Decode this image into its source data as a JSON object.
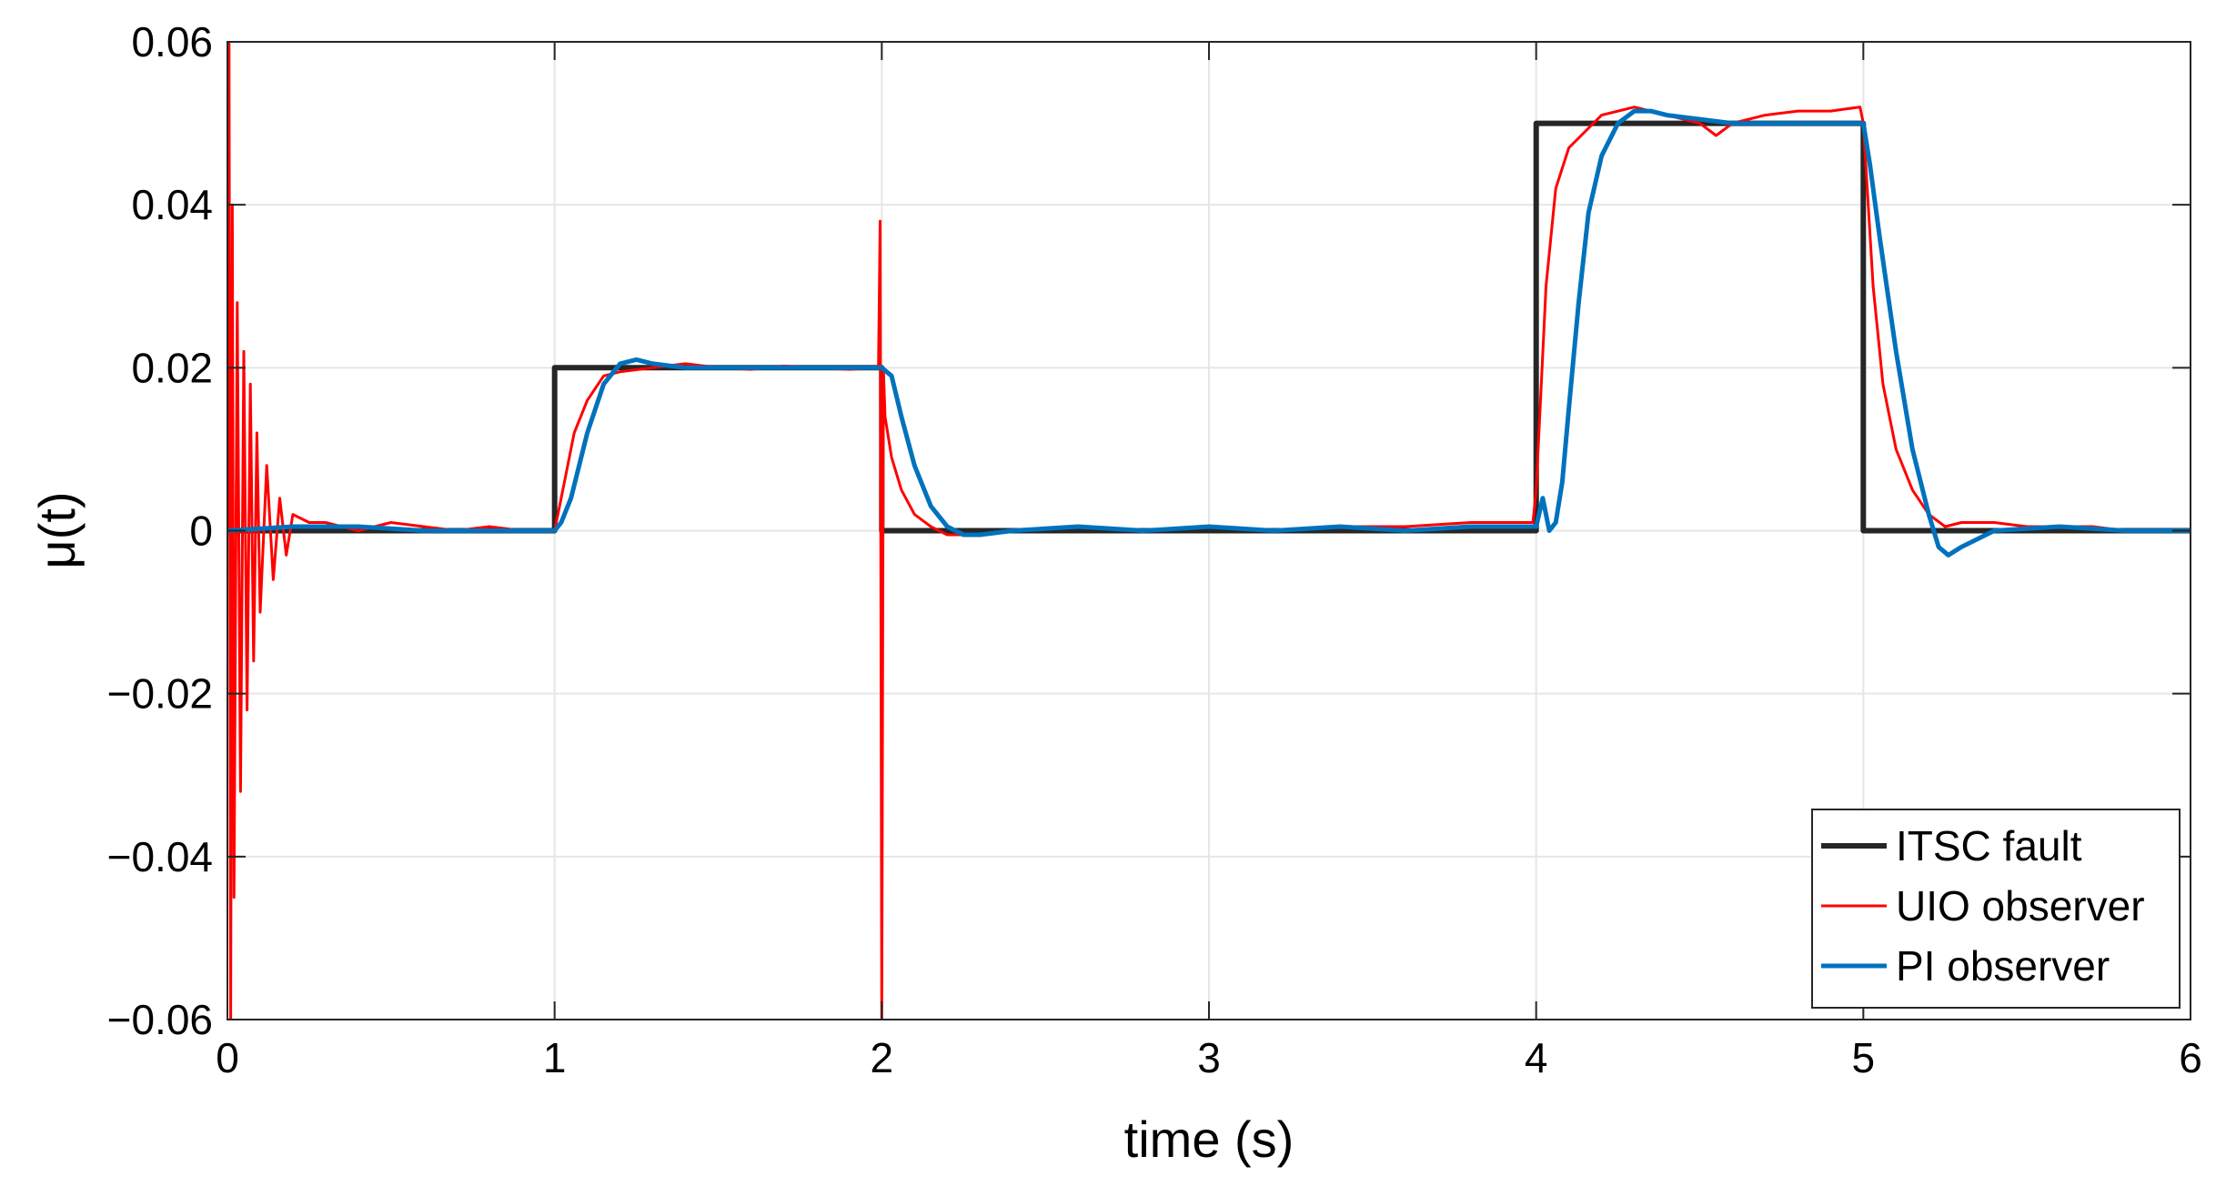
{
  "chart_data": {
    "type": "line",
    "title": "",
    "xlabel": "time (s)",
    "ylabel": "μ(t)",
    "xlim": [
      0,
      6
    ],
    "ylim": [
      -0.06,
      0.06
    ],
    "xticks": [
      0,
      1,
      2,
      3,
      4,
      5,
      6
    ],
    "xtick_labels": [
      "0",
      "1",
      "2",
      "3",
      "4",
      "5",
      "6"
    ],
    "yticks": [
      -0.06,
      -0.04,
      -0.02,
      0,
      0.02,
      0.04,
      0.06
    ],
    "ytick_labels": [
      "−0.06",
      "−0.04",
      "−0.02",
      "0",
      "0.02",
      "0.04",
      "0.06"
    ],
    "grid": true,
    "legend_position": "bottom-right",
    "series": [
      {
        "name": "ITSC fault",
        "color": "#262626",
        "x": [
          0,
          1,
          1,
          2,
          2,
          4,
          4,
          5,
          5,
          6
        ],
        "y": [
          0,
          0,
          0.02,
          0.02,
          0,
          0,
          0.05,
          0.05,
          0,
          0
        ]
      },
      {
        "name": "UIO observer",
        "color": "#ff0000",
        "x": [
          0,
          0.005,
          0.01,
          0.015,
          0.02,
          0.03,
          0.04,
          0.05,
          0.06,
          0.07,
          0.08,
          0.09,
          0.1,
          0.12,
          0.14,
          0.16,
          0.18,
          0.2,
          0.25,
          0.3,
          0.4,
          0.5,
          0.6,
          0.7,
          0.8,
          0.9,
          1.0,
          1.03,
          1.06,
          1.1,
          1.15,
          1.2,
          1.3,
          1.4,
          1.5,
          1.6,
          1.7,
          1.8,
          1.9,
          1.99,
          1.995,
          2.0,
          2.005,
          2.01,
          2.03,
          2.06,
          2.1,
          2.15,
          2.2,
          2.3,
          2.4,
          2.6,
          2.8,
          3.0,
          3.2,
          3.4,
          3.6,
          3.8,
          3.9,
          3.99,
          4.0,
          4.03,
          4.06,
          4.1,
          4.15,
          4.2,
          4.3,
          4.4,
          4.5,
          4.55,
          4.6,
          4.7,
          4.8,
          4.9,
          4.99,
          5.0,
          5.03,
          5.06,
          5.1,
          5.15,
          5.2,
          5.25,
          5.3,
          5.4,
          5.5,
          5.6,
          5.7,
          5.8,
          5.9,
          6.0
        ],
        "y": [
          0,
          0.06,
          -0.06,
          0.04,
          -0.045,
          0.028,
          -0.032,
          0.022,
          -0.022,
          0.018,
          -0.016,
          0.012,
          -0.01,
          0.008,
          -0.006,
          0.004,
          -0.003,
          0.002,
          0.001,
          0.001,
          0,
          0.001,
          0.0005,
          0,
          0.0005,
          0,
          0,
          0.006,
          0.012,
          0.016,
          0.019,
          0.0195,
          0.02,
          0.0205,
          0.02,
          0.0198,
          0.0202,
          0.02,
          0.0198,
          0.02,
          0.038,
          -0.06,
          0.02,
          0.014,
          0.009,
          0.005,
          0.002,
          0.0005,
          -0.0005,
          -0.0005,
          0,
          0.0005,
          0,
          0.0005,
          0,
          0.0005,
          0.0005,
          0.001,
          0.001,
          0.001,
          0.005,
          0.03,
          0.042,
          0.047,
          0.049,
          0.051,
          0.052,
          0.051,
          0.05,
          0.0485,
          0.05,
          0.051,
          0.0515,
          0.0515,
          0.052,
          0.05,
          0.03,
          0.018,
          0.01,
          0.005,
          0.002,
          0.0005,
          0.001,
          0.001,
          0.0005,
          0.0005,
          0.0005,
          0,
          0,
          0
        ]
      },
      {
        "name": "PI observer",
        "color": "#0072bd",
        "x": [
          0,
          0.2,
          0.4,
          0.6,
          0.8,
          1.0,
          1.02,
          1.05,
          1.1,
          1.15,
          1.2,
          1.25,
          1.3,
          1.4,
          1.6,
          1.8,
          2.0,
          2.03,
          2.06,
          2.1,
          2.15,
          2.2,
          2.25,
          2.3,
          2.4,
          2.6,
          2.8,
          3.0,
          3.2,
          3.4,
          3.6,
          3.8,
          4.0,
          4.02,
          4.04,
          4.06,
          4.08,
          4.1,
          4.13,
          4.16,
          4.2,
          4.25,
          4.3,
          4.35,
          4.4,
          4.5,
          4.6,
          4.8,
          5.0,
          5.02,
          5.05,
          5.1,
          5.15,
          5.2,
          5.23,
          5.26,
          5.3,
          5.35,
          5.4,
          5.6,
          5.8,
          6.0
        ],
        "y": [
          0,
          0.0005,
          0.0005,
          0,
          0,
          0,
          0.001,
          0.004,
          0.012,
          0.018,
          0.0205,
          0.021,
          0.0205,
          0.02,
          0.02,
          0.02,
          0.02,
          0.019,
          0.014,
          0.008,
          0.003,
          0.0005,
          -0.0005,
          -0.0005,
          0,
          0.0005,
          0,
          0.0005,
          0,
          0.0005,
          0,
          0.0005,
          0.0005,
          0.004,
          0,
          0.001,
          0.006,
          0.015,
          0.028,
          0.039,
          0.046,
          0.05,
          0.0515,
          0.0515,
          0.051,
          0.0505,
          0.05,
          0.05,
          0.05,
          0.045,
          0.036,
          0.022,
          0.01,
          0.002,
          -0.002,
          -0.003,
          -0.002,
          -0.001,
          0,
          0.0005,
          0,
          0
        ]
      }
    ]
  }
}
